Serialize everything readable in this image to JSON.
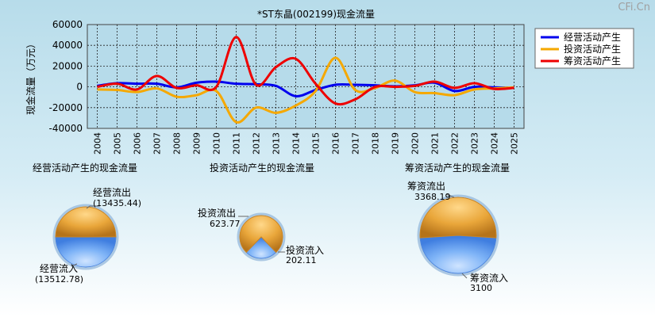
{
  "watermark": "CFi.Cn",
  "chart_data": [
    {
      "type": "line",
      "title": "*ST东晶(002199)现金流量",
      "ylabel": "现金流量（万元）",
      "ylim": [
        -40000,
        60000
      ],
      "yticks": [
        -40000,
        -20000,
        0,
        20000,
        40000,
        60000
      ],
      "grid": true,
      "legend_position": "top-right",
      "categories": [
        "2004",
        "2005",
        "2006",
        "2007",
        "2008",
        "2009",
        "2010",
        "2011",
        "2012",
        "2013",
        "2014",
        "2015",
        "2016",
        "2017",
        "2018",
        "2019",
        "2020",
        "2021",
        "2022",
        "2023",
        "2024",
        "2025"
      ],
      "series": [
        {
          "name": "经营活动产生",
          "color": "#0000ee",
          "values": [
            1000,
            3500,
            3000,
            3000,
            -500,
            4000,
            5000,
            3000,
            2500,
            1000,
            -9000,
            -3000,
            2000,
            2000,
            1500,
            500,
            1500,
            4000,
            -4000,
            0,
            -500,
            -1000
          ]
        },
        {
          "name": "投资活动产生",
          "color": "#f5a800",
          "values": [
            -2500,
            -3000,
            -5000,
            -1500,
            -9500,
            -8000,
            -4000,
            -34000,
            -20000,
            -25000,
            -18000,
            -4000,
            28000,
            -3000,
            -1000,
            6000,
            -5000,
            -6000,
            -8000,
            -2500,
            -1500,
            -500
          ]
        },
        {
          "name": "筹资活动产生",
          "color": "#ee0000",
          "values": [
            0,
            3000,
            -2500,
            10500,
            -1000,
            1500,
            0,
            48000,
            2000,
            19000,
            27000,
            3000,
            -16000,
            -12000,
            0,
            0,
            1000,
            5000,
            -1000,
            3500,
            -2000,
            -1000
          ]
        }
      ]
    },
    {
      "type": "pie",
      "title": "经营活动产生的现金流量",
      "slices": [
        {
          "label": "经营流出",
          "value": 13435.44,
          "value_text": "(13435.44)"
        },
        {
          "label": "经营流入",
          "value": 13512.78,
          "value_text": "(13512.78)"
        }
      ]
    },
    {
      "type": "pie",
      "title": "投资活动产生的现金流量",
      "slices": [
        {
          "label": "投资流出",
          "value": 623.77,
          "value_text": "623.77"
        },
        {
          "label": "投资流入",
          "value": 202.11,
          "value_text": "202.11"
        }
      ]
    },
    {
      "type": "pie",
      "title": "筹资活动产生的现金流量",
      "slices": [
        {
          "label": "筹资流出",
          "value": 3368.19,
          "value_text": "3368.19"
        },
        {
          "label": "筹资流入",
          "value": 3100,
          "value_text": "3100"
        }
      ]
    }
  ]
}
